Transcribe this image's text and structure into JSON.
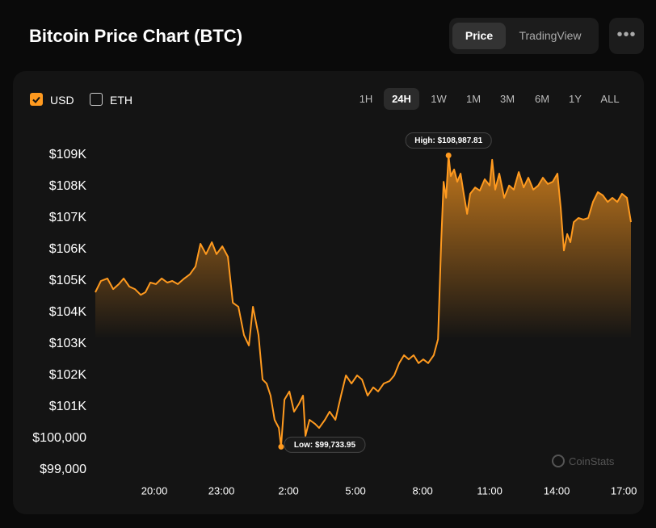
{
  "header": {
    "title": "Bitcoin Price Chart (BTC)",
    "tabs": [
      "Price",
      "TradingView"
    ],
    "active_tab": "Price"
  },
  "controls": {
    "currencies": [
      {
        "label": "USD",
        "checked": true
      },
      {
        "label": "ETH",
        "checked": false
      }
    ],
    "ranges": [
      "1H",
      "24H",
      "1W",
      "1M",
      "3M",
      "6M",
      "1Y",
      "ALL"
    ],
    "active_range": "24H"
  },
  "watermark": "CoinStats",
  "chart_data": {
    "type": "line",
    "x": [
      17.36,
      17.61,
      17.9,
      18.16,
      18.41,
      18.63,
      18.88,
      19.13,
      19.39,
      19.6,
      19.82,
      20.07,
      20.33,
      20.58,
      20.8,
      21.05,
      21.34,
      21.59,
      21.84,
      22.06,
      22.31,
      22.57,
      22.78,
      23.04,
      23.29,
      23.51,
      23.76,
      24.01,
      24.23,
      24.41,
      24.66,
      24.84,
      25.02,
      25.2,
      25.38,
      25.57,
      25.67,
      25.82,
      26.04,
      26.25,
      26.47,
      26.65,
      26.76,
      26.94,
      27.19,
      27.37,
      27.63,
      27.84,
      28.1,
      28.35,
      28.57,
      28.82,
      29.07,
      29.29,
      29.54,
      29.79,
      30.01,
      30.26,
      30.52,
      30.73,
      30.95,
      31.17,
      31.38,
      31.6,
      31.82,
      32.03,
      32.25,
      32.5,
      32.69,
      32.83,
      32.94,
      33.05,
      33.16,
      33.26,
      33.41,
      33.55,
      33.7,
      33.84,
      33.99,
      34.13,
      34.35,
      34.56,
      34.78,
      35.0,
      35.11,
      35.25,
      35.43,
      35.65,
      35.87,
      36.08,
      36.3,
      36.52,
      36.73,
      36.95,
      37.17,
      37.38,
      37.6,
      37.82,
      38.03,
      38.18,
      38.32,
      38.47,
      38.61,
      38.76,
      38.97,
      39.19,
      39.41,
      39.62,
      39.84,
      40.06,
      40.28,
      40.49,
      40.71,
      40.92,
      41.14,
      41.32
    ],
    "series": [
      {
        "name": "USD",
        "color": "#ff9a1f",
        "values": [
          104640,
          105000,
          105080,
          104740,
          104900,
          105080,
          104820,
          104740,
          104560,
          104640,
          104950,
          104900,
          105080,
          104950,
          105000,
          104900,
          105080,
          105210,
          105460,
          106180,
          105850,
          106230,
          105850,
          106100,
          105770,
          104310,
          104180,
          103280,
          102950,
          104180,
          103280,
          101870,
          101740,
          101360,
          100590,
          100330,
          99733.95,
          101230,
          101490,
          100850,
          101100,
          101360,
          100080,
          100590,
          100460,
          100330,
          100590,
          100850,
          100590,
          101360,
          102000,
          101740,
          102000,
          101870,
          101360,
          101620,
          101490,
          101740,
          101820,
          102000,
          102390,
          102640,
          102510,
          102640,
          102390,
          102510,
          102390,
          102640,
          103150,
          106230,
          108150,
          107640,
          108987.81,
          108330,
          108540,
          108150,
          108410,
          107770,
          107130,
          107770,
          107970,
          107870,
          108230,
          108030,
          108850,
          107900,
          108410,
          107640,
          108030,
          107900,
          108460,
          107970,
          108280,
          107900,
          108030,
          108280,
          108080,
          108150,
          108410,
          107310,
          105970,
          106490,
          106230,
          106870,
          107000,
          106950,
          107000,
          107510,
          107820,
          107720,
          107510,
          107640,
          107510,
          107770,
          107640,
          106870
        ]
      }
    ],
    "annotations": [
      {
        "text": "High: $108,987.81",
        "x": 33.16,
        "y": 108987.81
      },
      {
        "text": "Low: $99,733.95",
        "x": 25.67,
        "y": 99733.95
      }
    ],
    "xlim": [
      17.36,
      41.32
    ],
    "xticks": [
      {
        "value": 20,
        "label": "20:00"
      },
      {
        "value": 23,
        "label": "23:00"
      },
      {
        "value": 26,
        "label": "2:00"
      },
      {
        "value": 29,
        "label": "5:00"
      },
      {
        "value": 32,
        "label": "8:00"
      },
      {
        "value": 35,
        "label": "11:00"
      },
      {
        "value": 38,
        "label": "14:00"
      },
      {
        "value": 41,
        "label": "17:00"
      }
    ],
    "ylim": [
      99000,
      109000
    ],
    "yticks": [
      {
        "value": 99000,
        "label": "$99,000"
      },
      {
        "value": 100000,
        "label": "$100,000"
      },
      {
        "value": 101000,
        "label": "$101K"
      },
      {
        "value": 102000,
        "label": "$102K"
      },
      {
        "value": 103000,
        "label": "$103K"
      },
      {
        "value": 104000,
        "label": "$104K"
      },
      {
        "value": 105000,
        "label": "$105K"
      },
      {
        "value": 106000,
        "label": "$106K"
      },
      {
        "value": 107000,
        "label": "$107K"
      },
      {
        "value": 108000,
        "label": "$108K"
      },
      {
        "value": 109000,
        "label": "$109K"
      }
    ],
    "grid": false
  }
}
